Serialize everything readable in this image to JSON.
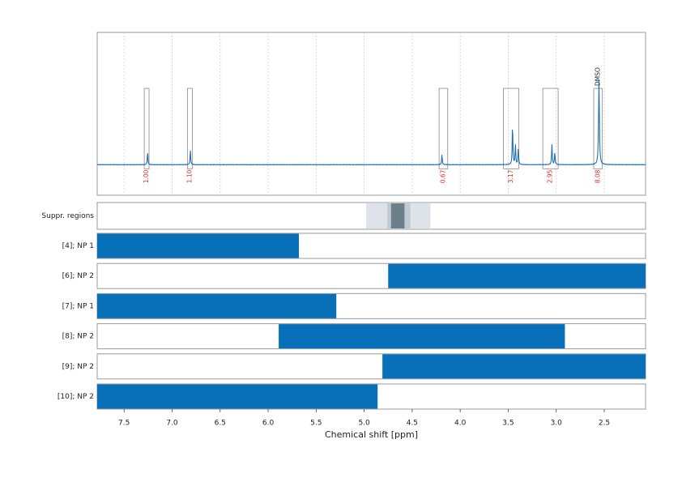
{
  "chart_data": {
    "type": "line",
    "xlabel": "Chemical shift [ppm]",
    "xlim": [
      7.78,
      2.07
    ],
    "x_ticks": [
      "7.5",
      "7.0",
      "6.5",
      "6.0",
      "5.5",
      "5.0",
      "4.5",
      "4.0",
      "3.5",
      "3.0",
      "2.5"
    ],
    "x_tick_values": [
      7.5,
      7.0,
      6.5,
      6.0,
      5.5,
      5.0,
      4.5,
      4.0,
      3.5,
      3.0,
      2.5
    ],
    "grid": true,
    "colors": {
      "spectrum": "#1f6fb5",
      "bar": "#0870b8",
      "integral_label": "#e8262b",
      "axis": "#9a9a9a",
      "grid": "#cfcfcf",
      "suppression_light": "#dde3e8",
      "suppression_mid": "#c0cad3",
      "suppression_dark": "#6e7f8c"
    },
    "spectrum": {
      "baseline": 0.0,
      "peaks": [
        {
          "ppm": 7.255,
          "height": 0.12,
          "width": 0.004
        },
        {
          "ppm": 6.81,
          "height": 0.14,
          "width": 0.004
        },
        {
          "ppm": 4.19,
          "height": 0.1,
          "width": 0.004
        },
        {
          "ppm": 3.455,
          "height": 0.4,
          "width": 0.004
        },
        {
          "ppm": 3.425,
          "height": 0.2,
          "width": 0.004
        },
        {
          "ppm": 3.395,
          "height": 0.15,
          "width": 0.004
        },
        {
          "ppm": 3.045,
          "height": 0.2,
          "width": 0.004
        },
        {
          "ppm": 3.015,
          "height": 0.12,
          "width": 0.004
        },
        {
          "ppm": 2.555,
          "height": 0.84,
          "width": 0.005
        }
      ],
      "ylim": [
        -0.3,
        1.3
      ]
    },
    "integrals": [
      {
        "label": "1.00",
        "from": 7.29,
        "to": 7.24
      },
      {
        "label": "1.10",
        "from": 6.84,
        "to": 6.79
      },
      {
        "label": "0.67",
        "from": 4.22,
        "to": 4.13
      },
      {
        "label": "3.17",
        "from": 3.55,
        "to": 3.39
      },
      {
        "label": "2.95",
        "from": 3.14,
        "to": 2.98
      },
      {
        "label": "8.08",
        "from": 2.61,
        "to": 2.52,
        "tag": "DMSO"
      }
    ],
    "suppressed_regions": {
      "label": "Suppr. regions",
      "regions": [
        {
          "from": 4.98,
          "to": 4.31,
          "level": "light"
        },
        {
          "from": 4.76,
          "to": 4.52,
          "level": "mid"
        },
        {
          "from": 4.72,
          "to": 4.58,
          "level": "dark"
        }
      ]
    },
    "bar_rows": [
      {
        "label": "[4]; NP 1",
        "from": 7.78,
        "to": 5.68
      },
      {
        "label": "[6]; NP 2",
        "from": 4.75,
        "to": 2.07
      },
      {
        "label": "[7]; NP 1",
        "from": 7.78,
        "to": 5.29
      },
      {
        "label": "[8]; NP 2",
        "from": 5.89,
        "to": 2.91
      },
      {
        "label": "[9]; NP 2",
        "from": 4.81,
        "to": 2.07
      },
      {
        "label": "[10]; NP 2",
        "from": 7.78,
        "to": 4.86
      }
    ]
  }
}
